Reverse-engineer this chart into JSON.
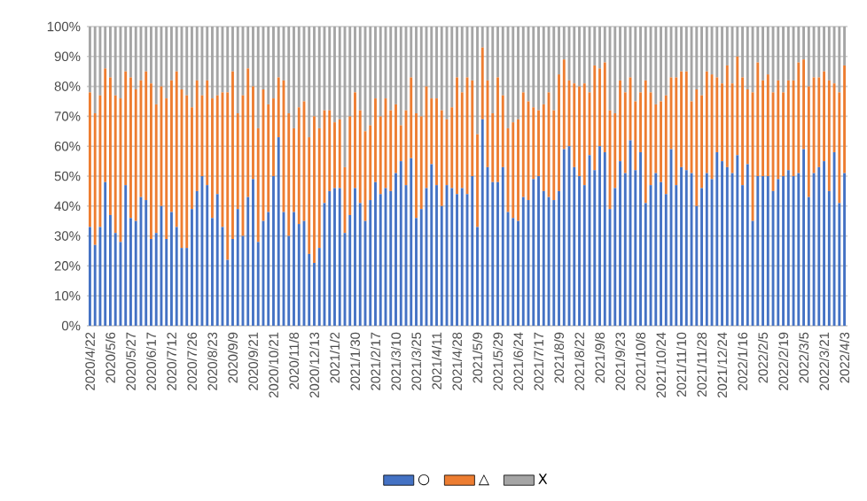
{
  "chart_data": {
    "type": "bar",
    "stacked": true,
    "grid": "y",
    "legend": "bottom",
    "categories": [
      "2020/4/22",
      null,
      null,
      null,
      "2020/5/6",
      null,
      null,
      null,
      "2020/5/27",
      null,
      null,
      null,
      "2020/6/17",
      null,
      null,
      null,
      "2020/7/12",
      null,
      null,
      null,
      "2020/7/26",
      null,
      null,
      null,
      "2020/8/23",
      null,
      null,
      null,
      "2020/9/9",
      null,
      null,
      null,
      "2020/9/21",
      null,
      null,
      null,
      "2020/10/21",
      null,
      null,
      null,
      "2020/11/8",
      null,
      null,
      null,
      "2020/12/13",
      null,
      null,
      null,
      "2021/1/2",
      null,
      null,
      null,
      "2021/1/30",
      null,
      null,
      null,
      "2021/2/17",
      null,
      null,
      null,
      "2021/3/10",
      null,
      null,
      null,
      "2021/3/25",
      null,
      null,
      null,
      "2021/4/11",
      null,
      null,
      null,
      "2021/4/28",
      null,
      null,
      null,
      "2021/5/9",
      null,
      null,
      null,
      "2021/5/29",
      null,
      null,
      null,
      "2021/6/24",
      null,
      null,
      null,
      "2021/7/17",
      null,
      null,
      null,
      "2021/8/9",
      null,
      null,
      null,
      "2021/8/22",
      null,
      null,
      null,
      "2021/9/8",
      null,
      null,
      null,
      "2021/9/23",
      null,
      null,
      null,
      "2021/10/8",
      null,
      null,
      null,
      "2021/10/24",
      null,
      null,
      null,
      "2021/11/10",
      null,
      null,
      null,
      "2021/11/28",
      null,
      null,
      null,
      "2021/12/24",
      null,
      null,
      null,
      "2022/1/16",
      null,
      null,
      null,
      "2022/2/5",
      null,
      null,
      null,
      "2022/2/19",
      null,
      null,
      null,
      "2022/3/5",
      null,
      null,
      null,
      "2022/3/21",
      null,
      null,
      null,
      "2022/4/3"
    ],
    "ylim": [
      0,
      100
    ],
    "yticks": [
      {
        "value": 0,
        "label": "0%"
      },
      {
        "value": 10,
        "label": "10%"
      },
      {
        "value": 20,
        "label": "20%"
      },
      {
        "value": 30,
        "label": "30%"
      },
      {
        "value": 40,
        "label": "40%"
      },
      {
        "value": 50,
        "label": "50%"
      },
      {
        "value": 60,
        "label": "60%"
      },
      {
        "value": 70,
        "label": "70%"
      },
      {
        "value": 80,
        "label": "80%"
      },
      {
        "value": 90,
        "label": "90%"
      },
      {
        "value": 100,
        "label": "100%"
      }
    ],
    "series": [
      {
        "name": "○",
        "color": "#4472c4",
        "values": [
          33,
          27,
          33,
          48,
          37,
          31,
          28,
          47,
          36,
          35,
          43,
          42,
          29,
          31,
          40,
          29,
          38,
          33,
          26,
          26,
          39,
          45,
          50,
          47,
          36,
          44,
          33,
          22,
          29,
          39,
          30,
          43,
          49,
          28,
          35,
          38,
          50,
          63,
          38,
          30,
          38,
          34,
          35,
          24,
          21,
          26,
          41,
          45,
          46,
          46,
          31,
          37,
          46,
          41,
          35,
          42,
          48,
          44,
          46,
          45,
          51,
          55,
          47,
          56,
          36,
          39,
          46,
          54,
          47,
          40,
          47,
          46,
          44,
          46,
          44,
          50,
          33,
          69,
          53,
          48,
          48,
          53,
          38,
          36,
          35,
          43,
          42,
          49,
          50,
          45,
          43,
          42,
          45,
          59,
          60,
          53,
          50,
          47,
          57,
          52,
          60,
          58,
          39,
          46,
          55,
          51,
          62,
          52,
          58,
          41,
          47,
          51,
          48,
          44,
          59,
          47,
          53,
          52,
          51,
          40,
          46,
          51,
          49,
          58,
          55,
          53,
          51,
          57,
          47,
          54,
          35,
          50,
          50,
          50,
          45,
          49,
          50,
          52,
          50,
          51,
          59,
          43,
          51,
          53,
          55,
          45,
          58,
          41,
          51
        ]
      },
      {
        "name": "△",
        "color": "#ed7d31",
        "values": [
          45,
          44,
          44,
          38,
          46,
          46,
          48,
          38,
          47,
          44,
          39,
          43,
          52,
          43,
          40,
          47,
          44,
          52,
          53,
          51,
          34,
          37,
          27,
          35,
          40,
          33,
          45,
          56,
          56,
          32,
          47,
          43,
          31,
          38,
          44,
          36,
          26,
          20,
          44,
          41,
          28,
          39,
          40,
          39,
          49,
          40,
          31,
          27,
          22,
          23,
          22,
          33,
          32,
          31,
          30,
          25,
          28,
          26,
          30,
          27,
          23,
          12,
          25,
          27,
          35,
          31,
          34,
          22,
          29,
          32,
          22,
          27,
          39,
          32,
          39,
          32,
          31,
          24,
          29,
          23,
          35,
          24,
          28,
          32,
          34,
          35,
          33,
          24,
          22,
          29,
          35,
          30,
          39,
          30,
          22,
          28,
          30,
          34,
          21,
          35,
          26,
          30,
          33,
          25,
          27,
          27,
          21,
          23,
          20,
          41,
          31,
          23,
          27,
          33,
          24,
          36,
          32,
          33,
          24,
          39,
          31,
          34,
          35,
          25,
          26,
          34,
          30,
          33,
          36,
          25,
          43,
          38,
          32,
          34,
          33,
          33,
          28,
          30,
          32,
          37,
          30,
          37,
          32,
          30,
          30,
          37,
          23,
          37,
          36
        ]
      },
      {
        "name": "X",
        "color": "#a5a5a5",
        "values": [
          22,
          29,
          23,
          14,
          17,
          23,
          24,
          15,
          17,
          21,
          18,
          15,
          19,
          26,
          20,
          24,
          18,
          15,
          21,
          23,
          27,
          18,
          23,
          18,
          24,
          23,
          22,
          22,
          15,
          29,
          23,
          14,
          20,
          34,
          21,
          26,
          24,
          17,
          18,
          29,
          34,
          27,
          25,
          37,
          30,
          34,
          28,
          28,
          32,
          31,
          47,
          30,
          22,
          28,
          35,
          33,
          24,
          30,
          24,
          28,
          26,
          33,
          28,
          17,
          29,
          30,
          20,
          24,
          24,
          28,
          31,
          27,
          17,
          22,
          17,
          18,
          36,
          7,
          18,
          29,
          17,
          23,
          34,
          32,
          31,
          22,
          25,
          27,
          28,
          26,
          22,
          28,
          16,
          11,
          18,
          19,
          20,
          19,
          22,
          13,
          14,
          12,
          28,
          29,
          18,
          22,
          17,
          25,
          22,
          18,
          22,
          26,
          25,
          23,
          17,
          17,
          15,
          15,
          25,
          21,
          23,
          15,
          16,
          17,
          19,
          13,
          19,
          10,
          17,
          21,
          22,
          12,
          18,
          16,
          22,
          18,
          22,
          18,
          18,
          12,
          11,
          20,
          17,
          17,
          15,
          18,
          19,
          22,
          13
        ]
      }
    ]
  }
}
